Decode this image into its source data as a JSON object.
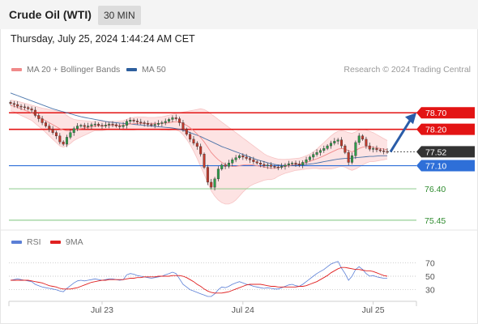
{
  "header": {
    "title": "Crude Oil (WTI)",
    "timeframe": "30 MIN",
    "datetime": "Thursday, July 25, 2024 1:44:24 AM CET"
  },
  "legend": {
    "ma20": "MA 20 + Bollinger Bands",
    "ma50": "MA 50",
    "credit": "Research © 2024 Trading Central",
    "colors": {
      "ma20": "#f08a8a",
      "ma50": "#2d5f9e",
      "bands": "#fde0e0"
    }
  },
  "rsi_legend": {
    "rsi": "RSI",
    "ma": "9MA",
    "colors": {
      "rsi": "#5b7fd6",
      "ma": "#e02020"
    }
  },
  "chart_data": [
    {
      "type": "line",
      "chart": "price",
      "y_range": [
        75.3,
        79.0
      ],
      "x_ticks": [
        {
          "label": "Jul 23",
          "index": 26
        },
        {
          "label": "Jul 24",
          "index": 66
        },
        {
          "label": "Jul 25",
          "index": 103
        }
      ],
      "levels": [
        {
          "label": "78.70",
          "value": 78.7,
          "kind": "resistance",
          "color": "#e31414"
        },
        {
          "label": "78.20",
          "value": 78.2,
          "kind": "resistance",
          "color": "#e31414"
        },
        {
          "label": "77.52",
          "value": 77.52,
          "kind": "last",
          "color": "#333333"
        },
        {
          "label": "77.10",
          "value": 77.1,
          "kind": "pivot",
          "color": "#2e6fd8"
        },
        {
          "label": "76.40",
          "value": 76.4,
          "kind": "support",
          "color": "#2e8b2e"
        },
        {
          "label": "75.45",
          "value": 75.45,
          "kind": "support",
          "color": "#2e8b2e"
        }
      ],
      "projection": {
        "from": 77.52,
        "to": 78.7,
        "color": "#2a5ca8"
      },
      "close": [
        78.98,
        78.95,
        78.9,
        78.88,
        78.86,
        78.82,
        78.78,
        78.62,
        78.52,
        78.4,
        78.3,
        78.2,
        78.1,
        78.0,
        77.82,
        77.75,
        77.96,
        78.1,
        78.22,
        78.3,
        78.32,
        78.28,
        78.3,
        78.34,
        78.36,
        78.32,
        78.3,
        78.33,
        78.36,
        78.34,
        78.3,
        78.28,
        78.32,
        78.44,
        78.48,
        78.45,
        78.42,
        78.4,
        78.38,
        78.35,
        78.32,
        78.35,
        78.38,
        78.4,
        78.44,
        78.5,
        78.55,
        78.52,
        78.4,
        78.2,
        78.05,
        77.9,
        77.78,
        77.68,
        77.45,
        77.05,
        76.6,
        76.45,
        76.7,
        77.0,
        77.12,
        77.08,
        77.18,
        77.28,
        77.34,
        77.4,
        77.36,
        77.32,
        77.28,
        77.22,
        77.18,
        77.14,
        77.1,
        77.12,
        77.08,
        77.06,
        77.05,
        77.08,
        77.12,
        77.16,
        77.18,
        77.15,
        77.12,
        77.2,
        77.28,
        77.36,
        77.44,
        77.5,
        77.56,
        77.62,
        77.7,
        77.78,
        77.84,
        77.88,
        77.7,
        77.5,
        77.2,
        77.4,
        77.8,
        78.0,
        77.9,
        77.7,
        77.6,
        77.62,
        77.58,
        77.55,
        77.53,
        77.52
      ],
      "ma20": [
        78.92,
        78.9,
        78.86,
        78.82,
        78.78,
        78.74,
        78.7,
        78.64,
        78.58,
        78.52,
        78.46,
        78.4,
        78.34,
        78.28,
        78.22,
        78.18,
        78.16,
        78.16,
        78.18,
        78.2,
        78.22,
        78.24,
        78.26,
        78.28,
        78.3,
        78.3,
        78.3,
        78.31,
        78.32,
        78.32,
        78.32,
        78.32,
        78.32,
        78.34,
        78.36,
        78.37,
        78.38,
        78.38,
        78.38,
        78.38,
        78.38,
        78.38,
        78.38,
        78.38,
        78.39,
        78.4,
        78.42,
        78.43,
        78.42,
        78.38,
        78.32,
        78.25,
        78.16,
        78.06,
        77.95,
        77.82,
        77.66,
        77.5,
        77.38,
        77.28,
        77.2,
        77.14,
        77.1,
        77.08,
        77.08,
        77.1,
        77.12,
        77.13,
        77.13,
        77.12,
        77.1,
        77.08,
        77.06,
        77.04,
        77.02,
        77.02,
        77.04,
        77.06,
        77.08,
        77.1,
        77.12,
        77.14,
        77.15,
        77.17,
        77.2,
        77.23,
        77.27,
        77.31,
        77.35,
        77.4,
        77.45,
        77.5,
        77.55,
        77.6,
        77.62,
        77.6,
        77.55,
        77.52,
        77.56,
        77.62,
        77.66,
        77.68,
        77.68,
        77.66,
        77.64,
        77.62,
        77.6,
        77.58
      ],
      "band_upper": [
        79.08,
        79.07,
        79.05,
        79.02,
        78.99,
        78.96,
        78.93,
        78.9,
        78.87,
        78.84,
        78.82,
        78.8,
        78.78,
        78.76,
        78.74,
        78.7,
        78.62,
        78.55,
        78.5,
        78.48,
        78.47,
        78.46,
        78.45,
        78.44,
        78.44,
        78.44,
        78.44,
        78.44,
        78.44,
        78.44,
        78.44,
        78.45,
        78.46,
        78.5,
        78.54,
        78.56,
        78.57,
        78.57,
        78.57,
        78.56,
        78.56,
        78.56,
        78.57,
        78.58,
        78.6,
        78.63,
        78.66,
        78.68,
        78.7,
        78.72,
        78.74,
        78.76,
        78.78,
        78.8,
        78.82,
        78.8,
        78.74,
        78.66,
        78.58,
        78.5,
        78.42,
        78.34,
        78.26,
        78.18,
        78.1,
        78.02,
        77.94,
        77.86,
        77.78,
        77.7,
        77.62,
        77.54,
        77.46,
        77.4,
        77.36,
        77.33,
        77.3,
        77.29,
        77.29,
        77.3,
        77.31,
        77.32,
        77.33,
        77.36,
        77.4,
        77.45,
        77.52,
        77.6,
        77.7,
        77.8,
        77.9,
        78.0,
        78.08,
        78.14,
        78.16,
        78.14,
        78.1,
        78.08,
        78.12,
        78.18,
        78.2,
        78.18,
        78.14,
        78.1,
        78.04,
        77.98,
        77.92,
        77.86
      ],
      "band_lower": [
        78.76,
        78.73,
        78.67,
        78.62,
        78.57,
        78.52,
        78.47,
        78.38,
        78.29,
        78.2,
        78.1,
        78.0,
        77.9,
        77.8,
        77.7,
        77.66,
        77.7,
        77.77,
        77.86,
        77.92,
        77.97,
        78.02,
        78.07,
        78.12,
        78.16,
        78.16,
        78.16,
        78.18,
        78.2,
        78.2,
        78.2,
        78.19,
        78.18,
        78.18,
        78.18,
        78.18,
        78.19,
        78.19,
        78.19,
        78.2,
        78.2,
        78.2,
        78.19,
        78.18,
        78.18,
        78.17,
        78.18,
        78.18,
        78.14,
        78.04,
        77.9,
        77.74,
        77.54,
        77.32,
        77.08,
        76.84,
        76.58,
        76.34,
        76.18,
        76.06,
        75.98,
        75.94,
        75.94,
        75.98,
        76.06,
        76.18,
        76.3,
        76.4,
        76.48,
        76.54,
        76.58,
        76.62,
        76.66,
        76.68,
        76.68,
        76.71,
        76.78,
        76.83,
        76.87,
        76.9,
        76.93,
        76.96,
        76.97,
        76.98,
        77.0,
        77.01,
        77.02,
        77.02,
        77.0,
        77.0,
        77.0,
        77.0,
        77.02,
        77.06,
        77.08,
        77.06,
        77.0,
        76.96,
        77.0,
        77.06,
        77.12,
        77.18,
        77.22,
        77.22,
        77.24,
        77.26,
        77.28,
        77.3
      ],
      "ma50": [
        79.3,
        79.26,
        79.22,
        79.18,
        79.14,
        79.1,
        79.06,
        79.02,
        78.98,
        78.94,
        78.9,
        78.86,
        78.82,
        78.79,
        78.76,
        78.73,
        78.7,
        78.67,
        78.64,
        78.61,
        78.58,
        78.56,
        78.54,
        78.52,
        78.5,
        78.48,
        78.46,
        78.44,
        78.42,
        78.41,
        78.4,
        78.39,
        78.38,
        78.37,
        78.36,
        78.35,
        78.34,
        78.33,
        78.32,
        78.31,
        78.3,
        78.29,
        78.28,
        78.27,
        78.26,
        78.25,
        78.24,
        78.22,
        78.2,
        78.17,
        78.14,
        78.1,
        78.06,
        78.02,
        77.98,
        77.93,
        77.88,
        77.83,
        77.78,
        77.73,
        77.68,
        77.64,
        77.6,
        77.56,
        77.52,
        77.48,
        77.44,
        77.4,
        77.36,
        77.32,
        77.28,
        77.25,
        77.22,
        77.19,
        77.16,
        77.14,
        77.12,
        77.11,
        77.1,
        77.1,
        77.1,
        77.11,
        77.12,
        77.13,
        77.14,
        77.15,
        77.16,
        77.18,
        77.2,
        77.22,
        77.24,
        77.26,
        77.28,
        77.3,
        77.31,
        77.32,
        77.32,
        77.33,
        77.34,
        77.35,
        77.36,
        77.37,
        77.38,
        77.38,
        77.39,
        77.4,
        77.4,
        77.4
      ]
    },
    {
      "type": "line",
      "chart": "rsi",
      "y_range": [
        20,
        80
      ],
      "y_ticks": [
        70,
        50,
        30
      ],
      "rsi": [
        44,
        45,
        46,
        45,
        44,
        43,
        42,
        38,
        36,
        34,
        33,
        32,
        31,
        30,
        28,
        27,
        32,
        36,
        40,
        43,
        44,
        43,
        44,
        45,
        46,
        45,
        44,
        45,
        46,
        46,
        45,
        44,
        45,
        52,
        54,
        53,
        51,
        50,
        49,
        48,
        47,
        48,
        49,
        50,
        52,
        54,
        56,
        54,
        46,
        38,
        34,
        30,
        28,
        26,
        24,
        22,
        20,
        20,
        24,
        30,
        34,
        33,
        35,
        38,
        40,
        42,
        40,
        38,
        37,
        35,
        34,
        33,
        32,
        33,
        32,
        31,
        31,
        33,
        35,
        37,
        38,
        36,
        35,
        38,
        42,
        46,
        50,
        54,
        57,
        60,
        64,
        68,
        70,
        72,
        62,
        54,
        44,
        50,
        60,
        64,
        60,
        54,
        50,
        51,
        49,
        48,
        47,
        47
      ],
      "ma": [
        44,
        44,
        44,
        44,
        44,
        44,
        43,
        42,
        41,
        40,
        38,
        36,
        35,
        34,
        32,
        31,
        31,
        31,
        32,
        33,
        35,
        37,
        39,
        41,
        42,
        43,
        44,
        44,
        45,
        45,
        45,
        45,
        45,
        46,
        47,
        47,
        48,
        48,
        49,
        49,
        49,
        49,
        50,
        50,
        50,
        50,
        51,
        51,
        51,
        50,
        48,
        45,
        42,
        38,
        35,
        31,
        28,
        26,
        25,
        25,
        25,
        26,
        27,
        29,
        31,
        33,
        35,
        37,
        38,
        38,
        38,
        38,
        37,
        36,
        35,
        35,
        34,
        34,
        34,
        34,
        34,
        34,
        35,
        35,
        36,
        38,
        40,
        42,
        45,
        48,
        51,
        55,
        58,
        61,
        63,
        63,
        62,
        61,
        60,
        60,
        59,
        58,
        58,
        57,
        55,
        53,
        51,
        50
      ]
    }
  ]
}
